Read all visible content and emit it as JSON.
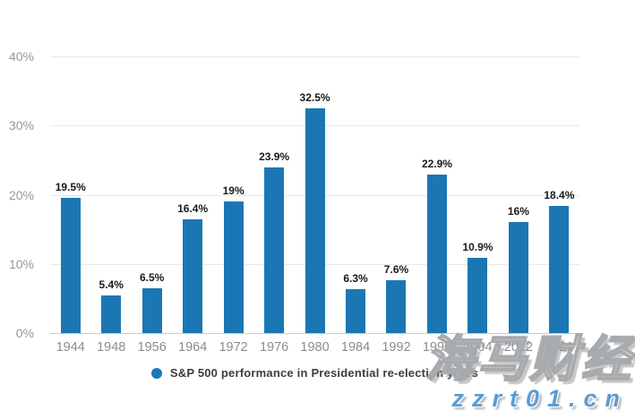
{
  "chart_data": {
    "type": "bar",
    "categories": [
      "1944",
      "1948",
      "1956",
      "1964",
      "1972",
      "1976",
      "1980",
      "1984",
      "1992",
      "1996",
      "2004",
      "2012",
      "2020"
    ],
    "values": [
      19.5,
      5.4,
      6.5,
      16.4,
      19,
      23.9,
      32.5,
      6.3,
      7.6,
      22.9,
      10.9,
      16,
      18.4
    ],
    "value_labels": [
      "19.5%",
      "5.4%",
      "6.5%",
      "16.4%",
      "19%",
      "23.9%",
      "32.5%",
      "6.3%",
      "7.6%",
      "22.9%",
      "10.9%",
      "16%",
      "18.4%"
    ],
    "xlabel": "",
    "ylabel": "",
    "ylim": [
      0,
      40
    ],
    "yticks": [
      0,
      10,
      20,
      30,
      40
    ],
    "ytick_labels": [
      "0%",
      "10%",
      "20%",
      "30%",
      "40%"
    ],
    "grid": true,
    "legend": "S&P 500 performance in Presidential re-election years",
    "legend_position": "bottom",
    "bar_color": "#1b77b4"
  },
  "watermark": {
    "brand_text": "海马财经",
    "url_text": "zzrt01.cn",
    "url_color": "#5b9bd5"
  },
  "colors": {
    "bar": "#1b77b4",
    "value_label": "#1a1a1a",
    "axis_label": "#8c8c8c",
    "gridline": "#e9e9e9",
    "baseline": "#c7cbce",
    "background": "#ffffff"
  }
}
